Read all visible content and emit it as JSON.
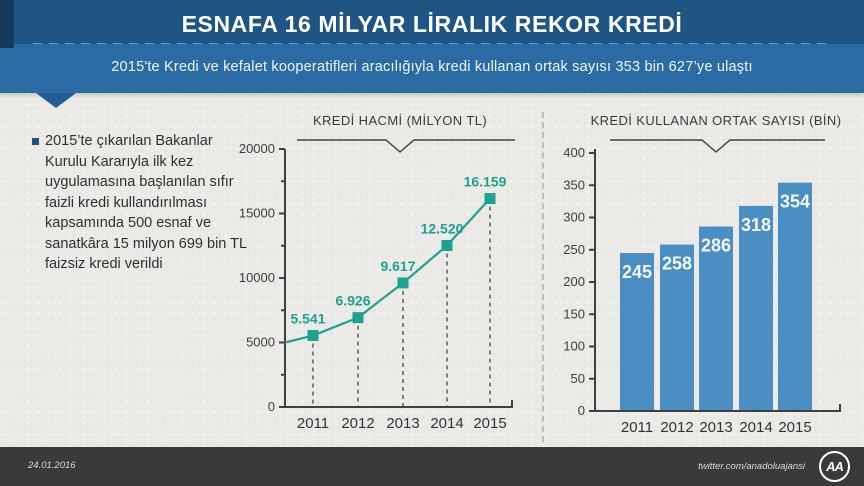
{
  "header": {
    "title": "ESNAFA 16 MİLYAR LİRALIK REKOR KREDİ",
    "subtitle": "2015'te Kredi ve kefalet kooperatifleri aracılığıyla kredi kullanan ortak sayısı 353 bin 627’ye ulaştı"
  },
  "sidebar": {
    "bullet_text": "2015’te çıkarılan Bakanlar Kurulu Kararıyla ilk kez uygulamasına başlanılan sıfır faizli kredi kullandırılması kapsamında 500 esnaf ve sanatkâra 15 milyon 699 bin TL faizsiz kredi verildi"
  },
  "footer": {
    "date": "24.01.2016",
    "twitter": "twitter.com/anadoluajansi",
    "logo": "AA"
  },
  "colors": {
    "header_dark_blue": "#1f5582",
    "header_blue": "#2b6ba3",
    "fold_navy": "#15395a",
    "accent_teal": "#1ea18f",
    "bar_blue": "#4a8ec4",
    "bar_label": "#f4fafd",
    "axis_gray": "#3f3f3f",
    "footer_gray": "#3a3a3a"
  },
  "chart_data": [
    {
      "type": "line",
      "title": "KREDİ HACMİ (MİLYON TL)",
      "categories": [
        "2011",
        "2012",
        "2013",
        "2014",
        "2015"
      ],
      "values": [
        5541,
        6926,
        9617,
        12520,
        16159
      ],
      "value_labels": [
        "5.541",
        "6.926",
        "9.617",
        "12.520",
        "16.159"
      ],
      "xlabel": "",
      "ylabel": "",
      "ylim": [
        0,
        20000
      ],
      "yticks": [
        0,
        5000,
        10000,
        15000,
        20000
      ],
      "ytick_minor": 2500,
      "line_starts_at_axis_value": 5000,
      "marker": "square",
      "drop_lines": "dashed",
      "grid": false,
      "legend": "none"
    },
    {
      "type": "bar",
      "title": "KREDİ KULLANAN ORTAK SAYISI (BİN)",
      "categories": [
        "2011",
        "2012",
        "2013",
        "2014",
        "2015"
      ],
      "values": [
        245,
        258,
        286,
        318,
        354
      ],
      "value_labels": [
        "245",
        "258",
        "286",
        "318",
        "354"
      ],
      "xlabel": "",
      "ylabel": "",
      "ylim": [
        0,
        400
      ],
      "yticks": [
        0,
        50,
        100,
        150,
        200,
        250,
        300,
        350,
        400
      ],
      "grid": false,
      "legend": "none"
    }
  ]
}
